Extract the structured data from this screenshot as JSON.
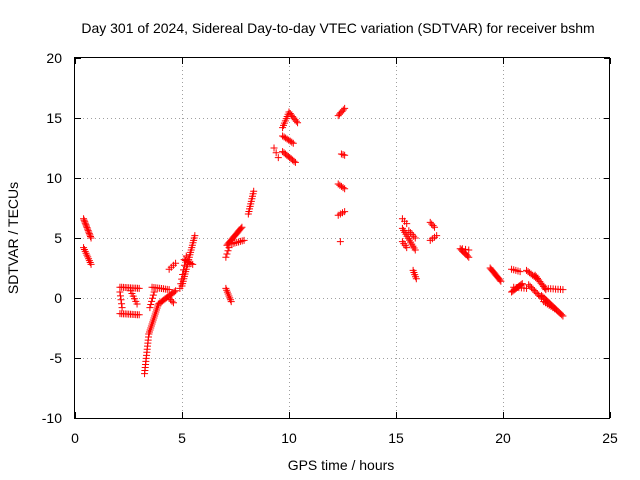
{
  "chart_data": {
    "type": "scatter",
    "title": "Day 301 of 2024, Sidereal Day-to-day VTEC variation (SDTVAR) for receiver bshm",
    "xlabel": "GPS time / hours",
    "ylabel": "SDTVAR / TECUs",
    "xlim": [
      0,
      25
    ],
    "ylim": [
      -10,
      20
    ],
    "x_ticks": [
      0,
      5,
      10,
      15,
      20,
      25
    ],
    "x_tick_labels": [
      "0",
      "5",
      "10",
      "15",
      "20",
      "25"
    ],
    "y_ticks": [
      -10,
      -5,
      0,
      5,
      10,
      15,
      20
    ],
    "y_tick_labels": [
      "-10",
      "-5",
      "0",
      "5",
      "10",
      "15",
      "20"
    ],
    "grid": true,
    "marker": "+",
    "color": "#ff0000",
    "series": [
      {
        "name": "SDTVAR",
        "segments": [
          {
            "x0": 0.4,
            "y0": 6.6,
            "x1": 0.75,
            "y1": 5.0,
            "n": 14
          },
          {
            "x0": 0.4,
            "y0": 4.2,
            "x1": 0.75,
            "y1": 2.8,
            "n": 10
          },
          {
            "x0": 2.1,
            "y0": 0.9,
            "x1": 3.0,
            "y1": 0.8,
            "n": 12
          },
          {
            "x0": 2.1,
            "y0": -1.3,
            "x1": 3.0,
            "y1": -1.4,
            "n": 12
          },
          {
            "x0": 2.1,
            "y0": 0.5,
            "x1": 2.2,
            "y1": -0.8,
            "n": 5
          },
          {
            "x0": 2.6,
            "y0": 0.6,
            "x1": 2.9,
            "y1": -0.5,
            "n": 6
          },
          {
            "x0": 3.25,
            "y0": -6.3,
            "x1": 3.45,
            "y1": -3.0,
            "n": 14
          },
          {
            "x0": 3.45,
            "y0": -3.0,
            "x1": 3.9,
            "y1": -0.5,
            "n": 16
          },
          {
            "x0": 3.9,
            "y0": -0.5,
            "x1": 4.7,
            "y1": 0.6,
            "n": 14
          },
          {
            "x0": 3.6,
            "y0": 0.9,
            "x1": 4.4,
            "y1": 0.7,
            "n": 10
          },
          {
            "x0": 3.5,
            "y0": -0.8,
            "x1": 3.7,
            "y1": 0.5,
            "n": 6
          },
          {
            "x0": 4.4,
            "y0": 0.0,
            "x1": 4.6,
            "y1": -0.4,
            "n": 4
          },
          {
            "x0": 4.4,
            "y0": 2.4,
            "x1": 4.7,
            "y1": 2.9,
            "n": 4
          },
          {
            "x0": 5.0,
            "y0": 1.0,
            "x1": 5.6,
            "y1": 5.2,
            "n": 22
          },
          {
            "x0": 4.9,
            "y0": 0.8,
            "x1": 5.2,
            "y1": 3.5,
            "n": 8
          },
          {
            "x0": 5.1,
            "y0": 3.2,
            "x1": 5.5,
            "y1": 2.8,
            "n": 6
          },
          {
            "x0": 7.05,
            "y0": 0.8,
            "x1": 7.3,
            "y1": -0.3,
            "n": 8
          },
          {
            "x0": 7.05,
            "y0": 3.4,
            "x1": 7.2,
            "y1": 4.2,
            "n": 4
          },
          {
            "x0": 7.1,
            "y0": 4.4,
            "x1": 7.8,
            "y1": 5.9,
            "n": 16
          },
          {
            "x0": 7.3,
            "y0": 4.5,
            "x1": 7.9,
            "y1": 4.8,
            "n": 8
          },
          {
            "x0": 8.1,
            "y0": 7.0,
            "x1": 8.35,
            "y1": 8.9,
            "n": 10
          },
          {
            "x0": 9.3,
            "y0": 12.5,
            "x1": 9.5,
            "y1": 11.7,
            "n": 3
          },
          {
            "x0": 9.7,
            "y0": 12.2,
            "x1": 10.3,
            "y1": 11.3,
            "n": 10
          },
          {
            "x0": 9.7,
            "y0": 13.5,
            "x1": 10.2,
            "y1": 12.9,
            "n": 8
          },
          {
            "x0": 9.7,
            "y0": 14.2,
            "x1": 10.0,
            "y1": 15.5,
            "n": 8
          },
          {
            "x0": 10.0,
            "y0": 15.5,
            "x1": 10.4,
            "y1": 14.6,
            "n": 8
          },
          {
            "x0": 12.3,
            "y0": 15.2,
            "x1": 12.6,
            "y1": 15.8,
            "n": 6
          },
          {
            "x0": 12.45,
            "y0": 12.0,
            "x1": 12.6,
            "y1": 11.9,
            "n": 3
          },
          {
            "x0": 12.3,
            "y0": 9.5,
            "x1": 12.6,
            "y1": 9.1,
            "n": 5
          },
          {
            "x0": 12.3,
            "y0": 6.9,
            "x1": 12.6,
            "y1": 7.2,
            "n": 4
          },
          {
            "x0": 12.4,
            "y0": 4.7,
            "x1": 12.4,
            "y1": 4.7,
            "n": 1
          },
          {
            "x0": 15.3,
            "y0": 6.6,
            "x1": 15.5,
            "y1": 6.2,
            "n": 3
          },
          {
            "x0": 15.3,
            "y0": 5.8,
            "x1": 15.9,
            "y1": 4.0,
            "n": 12
          },
          {
            "x0": 15.3,
            "y0": 4.7,
            "x1": 15.5,
            "y1": 4.2,
            "n": 4
          },
          {
            "x0": 15.6,
            "y0": 5.6,
            "x1": 15.9,
            "y1": 5.0,
            "n": 5
          },
          {
            "x0": 15.8,
            "y0": 2.3,
            "x1": 15.95,
            "y1": 1.6,
            "n": 5
          },
          {
            "x0": 16.6,
            "y0": 6.3,
            "x1": 16.8,
            "y1": 5.9,
            "n": 4
          },
          {
            "x0": 16.6,
            "y0": 4.8,
            "x1": 16.9,
            "y1": 5.2,
            "n": 4
          },
          {
            "x0": 18.0,
            "y0": 4.1,
            "x1": 18.4,
            "y1": 3.4,
            "n": 8
          },
          {
            "x0": 18.1,
            "y0": 4.1,
            "x1": 18.4,
            "y1": 4.0,
            "n": 3
          },
          {
            "x0": 19.4,
            "y0": 2.5,
            "x1": 19.9,
            "y1": 1.4,
            "n": 12
          },
          {
            "x0": 20.4,
            "y0": 2.4,
            "x1": 20.8,
            "y1": 2.2,
            "n": 5
          },
          {
            "x0": 20.4,
            "y0": 0.5,
            "x1": 20.9,
            "y1": 1.2,
            "n": 10
          },
          {
            "x0": 20.5,
            "y0": 0.9,
            "x1": 21.1,
            "y1": 0.8,
            "n": 6
          },
          {
            "x0": 21.1,
            "y0": 2.3,
            "x1": 21.6,
            "y1": 1.6,
            "n": 8
          },
          {
            "x0": 21.2,
            "y0": 1.1,
            "x1": 21.8,
            "y1": 0.0,
            "n": 10
          },
          {
            "x0": 21.5,
            "y0": 1.9,
            "x1": 22.0,
            "y1": 0.7,
            "n": 10
          },
          {
            "x0": 21.8,
            "y0": 0.2,
            "x1": 22.8,
            "y1": -1.5,
            "n": 18
          },
          {
            "x0": 22.0,
            "y0": 0.8,
            "x1": 22.8,
            "y1": 0.7,
            "n": 8
          },
          {
            "x0": 21.9,
            "y0": -0.3,
            "x1": 22.5,
            "y1": -1.0,
            "n": 8
          }
        ]
      }
    ]
  }
}
